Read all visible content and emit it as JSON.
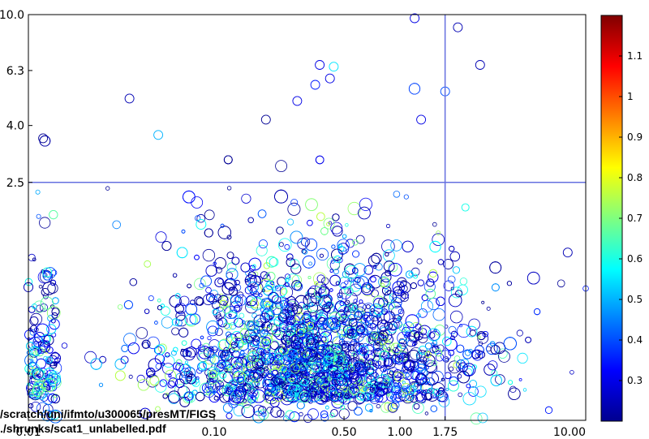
{
  "chart_data": {
    "type": "scatter",
    "title": "",
    "xlabel": "",
    "ylabel": "",
    "x_scale": "log",
    "y_scale": "log",
    "xlim": [
      0.01,
      10.0
    ],
    "ylim": [
      0.35,
      10.0
    ],
    "x_ticks": [
      "0.10",
      "0.50",
      "1.00",
      "1.75",
      "10.00"
    ],
    "x_tick_values": [
      0.1,
      0.5,
      1.0,
      1.75,
      10.0
    ],
    "y_ticks": [
      "2.5",
      "4.0",
      "6.3",
      "10.0"
    ],
    "y_tick_values": [
      2.5,
      4.0,
      6.3,
      10.0
    ],
    "reference_lines": {
      "x": 1.75,
      "y": 2.5
    },
    "reference_line_color": "#6670e0",
    "marker": "open circle, size and color encode third variable",
    "colorbar": {
      "colormap": "jet",
      "range": [
        0.2,
        1.2
      ],
      "ticks": [
        "0.3",
        "0.4",
        "0.5",
        "0.6",
        "0.7",
        "0.8",
        "0.9",
        "1",
        "1.1"
      ],
      "tick_values": [
        0.3,
        0.4,
        0.5,
        0.6,
        0.7,
        0.8,
        0.9,
        1.0,
        1.1
      ]
    },
    "point_count": 4000,
    "points": [
      {
        "x": 0.19,
        "y": 4.2,
        "c": 0.22
      },
      {
        "x": 0.035,
        "y": 5.0,
        "c": 0.25
      },
      {
        "x": 0.012,
        "y": 3.6,
        "c": 0.22
      },
      {
        "x": 0.05,
        "y": 3.7,
        "c": 0.5
      },
      {
        "x": 1.2,
        "y": 9.7,
        "c": 0.3
      },
      {
        "x": 2.05,
        "y": 9.0,
        "c": 0.25
      },
      {
        "x": 0.37,
        "y": 6.6,
        "c": 0.3
      },
      {
        "x": 0.44,
        "y": 6.5,
        "c": 0.55
      },
      {
        "x": 0.42,
        "y": 5.9,
        "c": 0.3
      },
      {
        "x": 0.35,
        "y": 5.6,
        "c": 0.35
      },
      {
        "x": 0.28,
        "y": 4.9,
        "c": 0.3
      },
      {
        "x": 1.3,
        "y": 4.2,
        "c": 0.3
      },
      {
        "x": 2.7,
        "y": 6.6,
        "c": 0.25
      },
      {
        "x": 1.75,
        "y": 5.3,
        "c": 0.4
      },
      {
        "x": 8.0,
        "y": 1.4,
        "c": 0.25
      }
    ]
  },
  "overlay_text": {
    "path_line1": "/scratch/uni/ifmto/u300065/presMT/FIGS",
    "path_line2": "./shrunks/scat1_unlabelled.pdf",
    "hidden_tick": "0.01"
  }
}
